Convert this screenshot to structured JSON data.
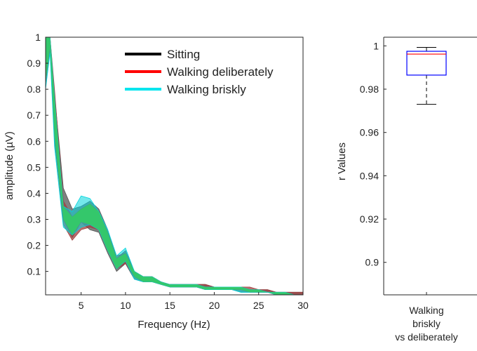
{
  "chart_data": [
    {
      "type": "area",
      "xlabel": "Frequency (Hz)",
      "ylabel": "amplitude (µV)",
      "xlim": [
        1,
        30
      ],
      "ylim": [
        0.01,
        1.0
      ],
      "xticks": [
        5,
        10,
        15,
        20,
        25,
        30
      ],
      "yticks": [
        0.1,
        0.2,
        0.3,
        0.4,
        0.5,
        0.6,
        0.7,
        0.8,
        0.9,
        1
      ],
      "ytick_labels": [
        "0.1",
        "0.2",
        "0.3",
        "0.4",
        "0.5",
        "0.6",
        "0.7",
        "0.8",
        "0.9",
        "1"
      ],
      "legend_position": "top-right",
      "x": [
        1,
        1.5,
        2,
        3,
        4,
        5,
        6,
        7,
        8,
        9,
        10,
        11,
        12,
        13,
        14,
        15,
        16,
        17,
        18,
        19,
        20,
        21,
        22,
        23,
        24,
        25,
        26,
        27,
        28,
        29,
        30
      ],
      "series": [
        {
          "name": "Sitting",
          "color": "#000000",
          "fill": "#555555",
          "lower": [
            0.83,
            0.95,
            0.6,
            0.3,
            0.23,
            0.29,
            0.26,
            0.25,
            0.17,
            0.1,
            0.13,
            0.07,
            0.06,
            0.06,
            0.05,
            0.04,
            0.04,
            0.04,
            0.04,
            0.03,
            0.03,
            0.03,
            0.03,
            0.02,
            0.02,
            0.02,
            0.02,
            0.01,
            0.01,
            0.01,
            0.01
          ],
          "upper": [
            1.0,
            1.0,
            0.78,
            0.42,
            0.34,
            0.35,
            0.37,
            0.34,
            0.26,
            0.15,
            0.18,
            0.1,
            0.08,
            0.08,
            0.06,
            0.05,
            0.05,
            0.05,
            0.05,
            0.05,
            0.04,
            0.04,
            0.04,
            0.04,
            0.03,
            0.03,
            0.03,
            0.02,
            0.02,
            0.02,
            0.02
          ]
        },
        {
          "name": "Walking deliberately",
          "color": "#ff0000",
          "fill": "#a04040",
          "lower": [
            0.82,
            0.96,
            0.62,
            0.28,
            0.22,
            0.26,
            0.27,
            0.26,
            0.18,
            0.11,
            0.13,
            0.08,
            0.06,
            0.06,
            0.05,
            0.04,
            0.04,
            0.04,
            0.04,
            0.03,
            0.03,
            0.03,
            0.03,
            0.03,
            0.02,
            0.02,
            0.02,
            0.01,
            0.01,
            0.01,
            0.01
          ],
          "upper": [
            1.0,
            1.0,
            0.8,
            0.37,
            0.31,
            0.34,
            0.36,
            0.33,
            0.25,
            0.16,
            0.17,
            0.1,
            0.08,
            0.08,
            0.06,
            0.05,
            0.05,
            0.05,
            0.05,
            0.05,
            0.04,
            0.04,
            0.04,
            0.04,
            0.04,
            0.03,
            0.03,
            0.02,
            0.02,
            0.02,
            0.02
          ]
        },
        {
          "name": "Walking briskly",
          "color": "#00e5ee",
          "fill": "#00d5dd",
          "lower": [
            0.8,
            0.94,
            0.58,
            0.27,
            0.24,
            0.27,
            0.28,
            0.26,
            0.18,
            0.11,
            0.14,
            0.07,
            0.06,
            0.06,
            0.05,
            0.04,
            0.04,
            0.04,
            0.04,
            0.03,
            0.03,
            0.03,
            0.03,
            0.02,
            0.02,
            0.02,
            0.02,
            0.01,
            0.01,
            0.01,
            0.01
          ],
          "upper": [
            1.0,
            1.0,
            0.77,
            0.35,
            0.33,
            0.39,
            0.38,
            0.33,
            0.26,
            0.16,
            0.19,
            0.1,
            0.08,
            0.08,
            0.06,
            0.05,
            0.05,
            0.05,
            0.05,
            0.04,
            0.04,
            0.04,
            0.04,
            0.04,
            0.03,
            0.03,
            0.02,
            0.02,
            0.02,
            0.01,
            0.01
          ]
        }
      ],
      "overlap_fill": "#33cc66"
    },
    {
      "type": "box",
      "ylabel": "r Values",
      "ylim": [
        0.885,
        1.004
      ],
      "yticks": [
        0.9,
        0.92,
        0.94,
        0.96,
        0.98,
        1
      ],
      "ytick_labels": [
        "0.9",
        "0.92",
        "0.94",
        "0.96",
        "0.98",
        "1"
      ],
      "categories": [
        [
          "Walking",
          "briskly",
          "vs deliberately"
        ]
      ],
      "boxes": [
        {
          "whisker_low": 0.973,
          "q1": 0.9865,
          "median": 0.9962,
          "q3": 0.9975,
          "whisker_high": 0.9993,
          "box_color": "#0000ff",
          "median_color": "#ff0000",
          "whisker_color": "#000000"
        }
      ]
    }
  ]
}
